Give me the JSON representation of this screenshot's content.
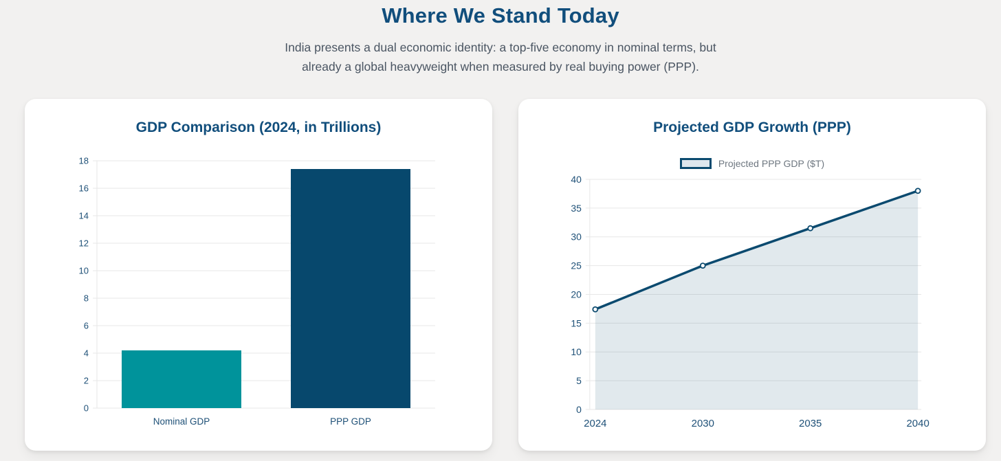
{
  "header": {
    "title": "Where We Stand Today",
    "subtitle_line1": "India presents a dual economic identity: a top-five economy in nominal terms, but",
    "subtitle_line2": "already a global heavyweight when measured by real buying power (PPP)."
  },
  "colors": {
    "page_bg": "#f2f1f0",
    "card_bg": "#ffffff",
    "heading": "#114e7c",
    "subtitle_text": "#4a5562",
    "axis_label": "#1e5077",
    "grid": "#e7e7e7",
    "teal_bar": "#00939b",
    "navy_bar": "#07486d",
    "line": "#0b4a6f",
    "area_fill": "rgba(11,74,111,0.12)",
    "marker_fill": "#ffffff",
    "legend_swatch_fill": "#dde6ed",
    "legend_text": "#6e7780"
  },
  "chart_data": [
    {
      "type": "bar",
      "title": "GDP Comparison (2024, in Trillions)",
      "categories": [
        "Nominal GDP",
        "PPP GDP"
      ],
      "values": [
        4.2,
        17.4
      ],
      "bar_colors": [
        "#00939b",
        "#07486d"
      ],
      "xlabel": "",
      "ylabel": "",
      "ylim": [
        0,
        18
      ],
      "ytick_step": 2,
      "grid": true,
      "legend": false
    },
    {
      "type": "area",
      "title": "Projected GDP Growth (PPP)",
      "x": [
        "2024",
        "2030",
        "2035",
        "2040"
      ],
      "series": [
        {
          "name": "Projected PPP GDP ($T)",
          "values": [
            17.4,
            25,
            31.5,
            38
          ]
        }
      ],
      "xlabel": "",
      "ylabel": "",
      "ylim": [
        0,
        40
      ],
      "ytick_step": 5,
      "grid": true,
      "legend_position": "top"
    }
  ]
}
